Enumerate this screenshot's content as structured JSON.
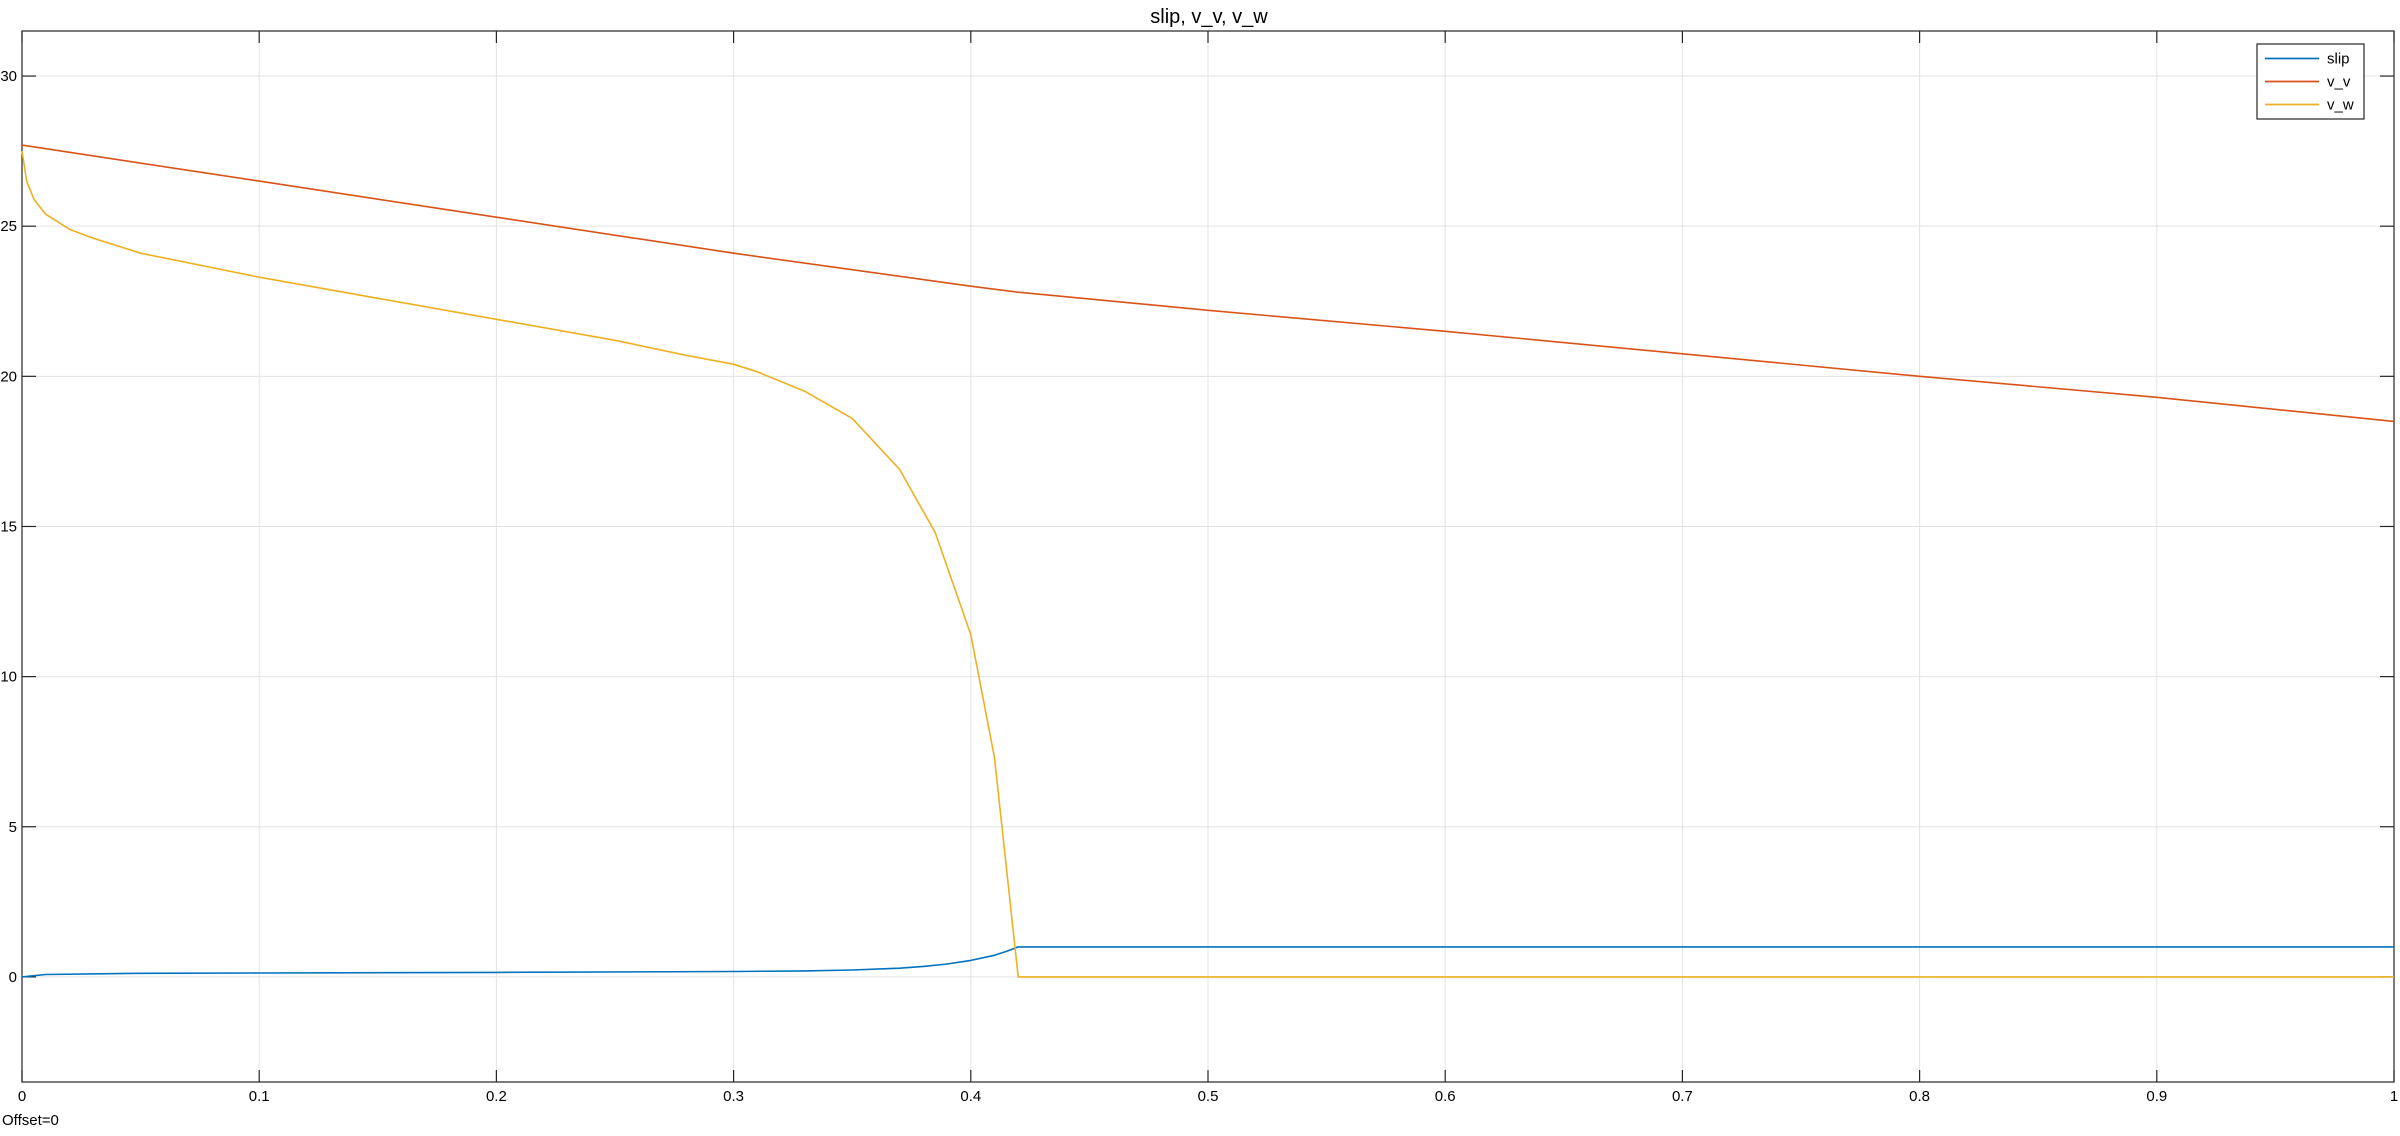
{
  "offset_label": "Offset=0",
  "chart_data": {
    "type": "line",
    "title": "slip, v_v, v_w",
    "xlabel": "",
    "ylabel": "",
    "xlim": [
      0,
      1
    ],
    "ylim": [
      -3.5,
      31.5
    ],
    "xticks": [
      0,
      0.1,
      0.2,
      0.3,
      0.4,
      0.5,
      0.6,
      0.7,
      0.8,
      0.9,
      1
    ],
    "xtick_labels": [
      "0",
      "0.1",
      "0.2",
      "0.3",
      "0.4",
      "0.5",
      "0.6",
      "0.7",
      "0.8",
      "0.9",
      "1"
    ],
    "yticks": [
      0,
      5,
      10,
      15,
      20,
      25,
      30
    ],
    "ytick_labels": [
      "0",
      "5",
      "10",
      "15",
      "20",
      "25",
      "30"
    ],
    "grid": true,
    "legend_position": "top-right",
    "series": [
      {
        "name": "slip",
        "color": "#0072BD",
        "x": [
          0,
          0.01,
          0.05,
          0.1,
          0.2,
          0.3,
          0.33,
          0.35,
          0.37,
          0.38,
          0.39,
          0.4,
          0.41,
          0.415,
          0.42,
          0.421,
          0.5,
          0.6,
          0.7,
          0.8,
          0.9,
          1.0
        ],
        "y": [
          0.0,
          0.08,
          0.12,
          0.13,
          0.15,
          0.18,
          0.2,
          0.23,
          0.29,
          0.35,
          0.43,
          0.55,
          0.72,
          0.85,
          1.0,
          1.0,
          1.0,
          1.0,
          1.0,
          1.0,
          1.0,
          1.0
        ]
      },
      {
        "name": "v_v",
        "color": "#D95319",
        "x": [
          0,
          0.1,
          0.2,
          0.3,
          0.4,
          0.42,
          0.5,
          0.6,
          0.7,
          0.8,
          0.9,
          1.0
        ],
        "y": [
          27.7,
          26.5,
          25.3,
          24.1,
          23.0,
          22.8,
          22.2,
          21.5,
          20.75,
          20.0,
          19.3,
          18.5
        ]
      },
      {
        "name": "v_w",
        "color": "#EDB120",
        "x": [
          0,
          0.002,
          0.005,
          0.01,
          0.02,
          0.03,
          0.05,
          0.1,
          0.15,
          0.2,
          0.25,
          0.28,
          0.3,
          0.31,
          0.33,
          0.35,
          0.37,
          0.385,
          0.4,
          0.41,
          0.42,
          0.421,
          0.5,
          0.6,
          0.7,
          0.8,
          0.9,
          1.0
        ],
        "y": [
          27.5,
          26.5,
          25.9,
          25.4,
          24.9,
          24.6,
          24.1,
          23.3,
          22.6,
          21.9,
          21.2,
          20.7,
          20.4,
          20.15,
          19.5,
          18.6,
          16.9,
          14.8,
          11.4,
          7.3,
          0.0,
          0.0,
          0.0,
          0.0,
          0.0,
          0.0,
          0.0,
          0.0
        ]
      }
    ]
  }
}
